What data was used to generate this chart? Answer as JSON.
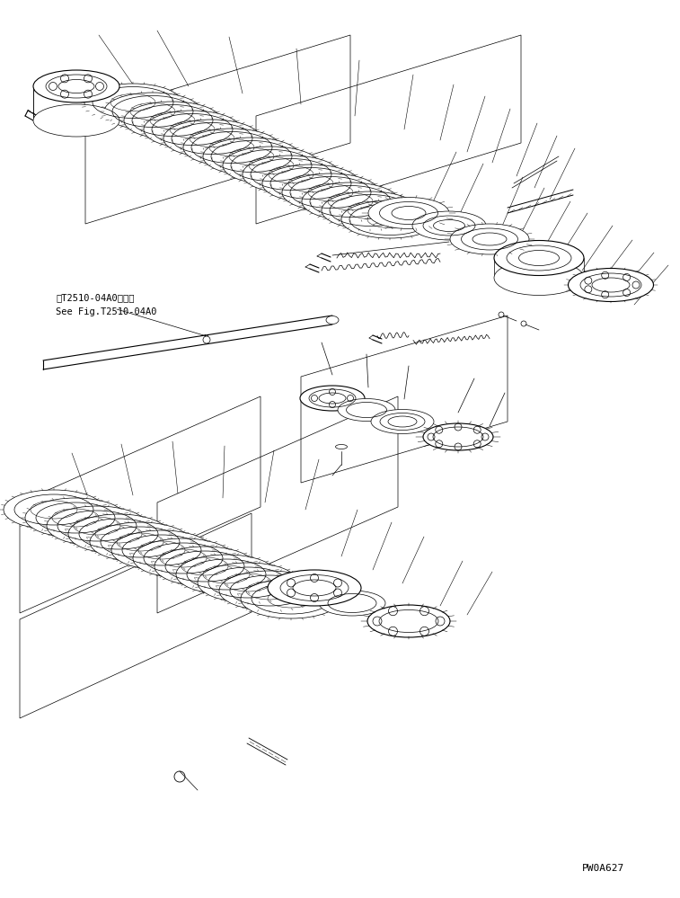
{
  "bg_color": "#ffffff",
  "line_color": "#000000",
  "fig_width": 7.57,
  "fig_height": 9.99,
  "dpi": 100,
  "ref_text_line1": "第T2510-04A0図参照",
  "ref_text_line2": "See Fig.T2510-04A0",
  "part_number": "PW0A627"
}
